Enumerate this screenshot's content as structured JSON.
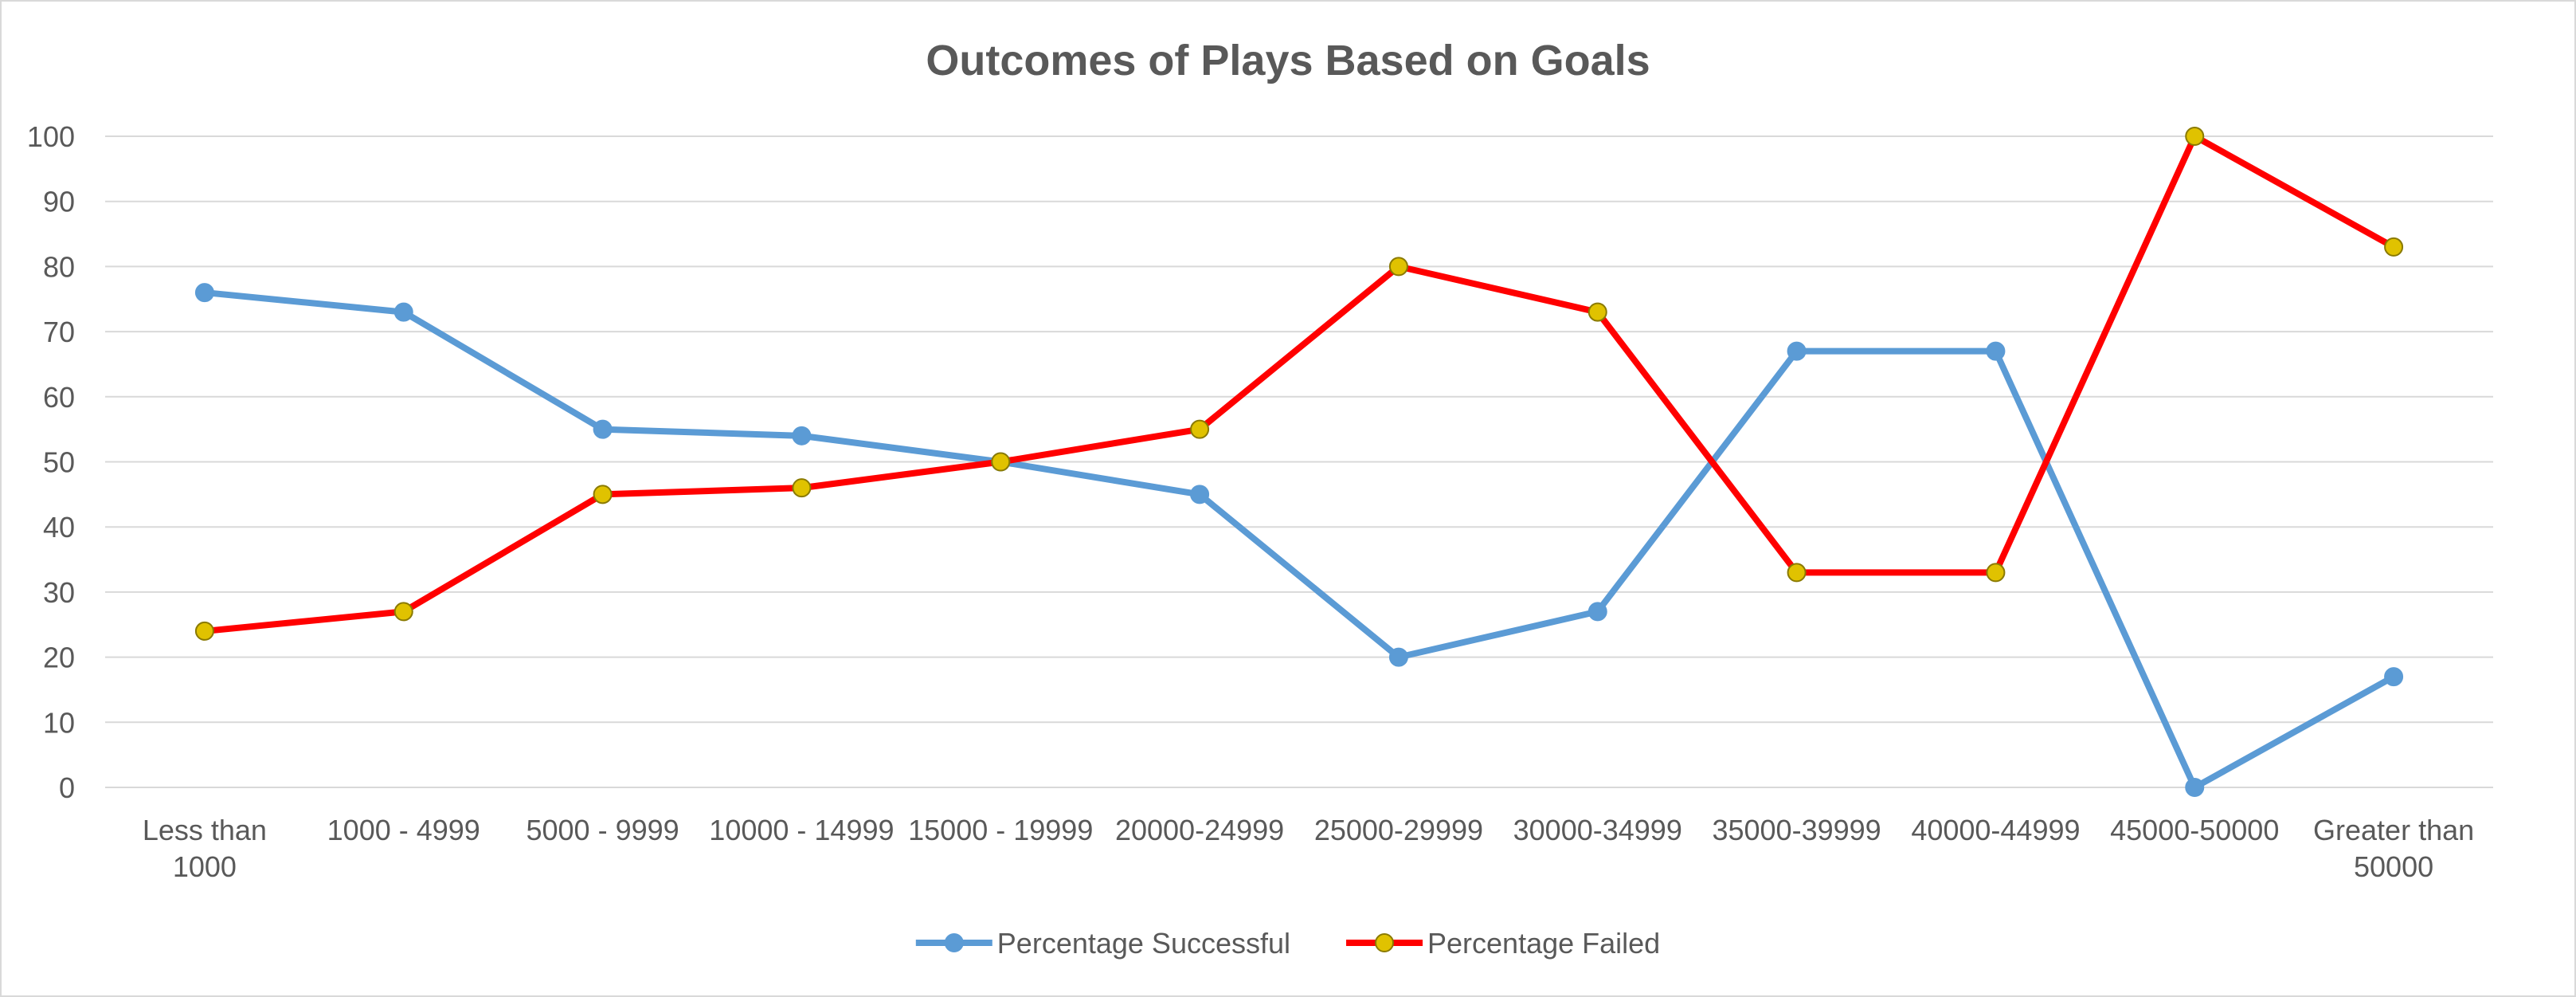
{
  "chart_data": {
    "type": "line",
    "title": "Outcomes of Plays Based on Goals",
    "xlabel": "",
    "ylabel": "",
    "categories": [
      "Less than 1000",
      "1000 - 4999",
      "5000 - 9999",
      "10000 - 14999",
      "15000 - 19999",
      "20000-24999",
      "25000-29999",
      "30000-34999",
      "35000-39999",
      "40000-44999",
      "45000-50000",
      "Greater than 50000"
    ],
    "ylim": [
      0,
      100
    ],
    "yticks": [
      0,
      10,
      20,
      30,
      40,
      50,
      60,
      70,
      80,
      90,
      100
    ],
    "grid": true,
    "legend_position": "bottom",
    "series": [
      {
        "name": "Percentage Successful",
        "color": "#5b9bd5",
        "marker_fill": "#5b9bd5",
        "marker_stroke": "#5b9bd5",
        "values": [
          76,
          73,
          55,
          54,
          50,
          45,
          20,
          27,
          67,
          67,
          0,
          17
        ]
      },
      {
        "name": "Percentage Failed",
        "color": "#ff0000",
        "marker_fill": "#e0c200",
        "marker_stroke": "#8a7a00",
        "values": [
          24,
          27,
          45,
          46,
          50,
          55,
          80,
          73,
          33,
          33,
          100,
          83
        ]
      }
    ]
  }
}
